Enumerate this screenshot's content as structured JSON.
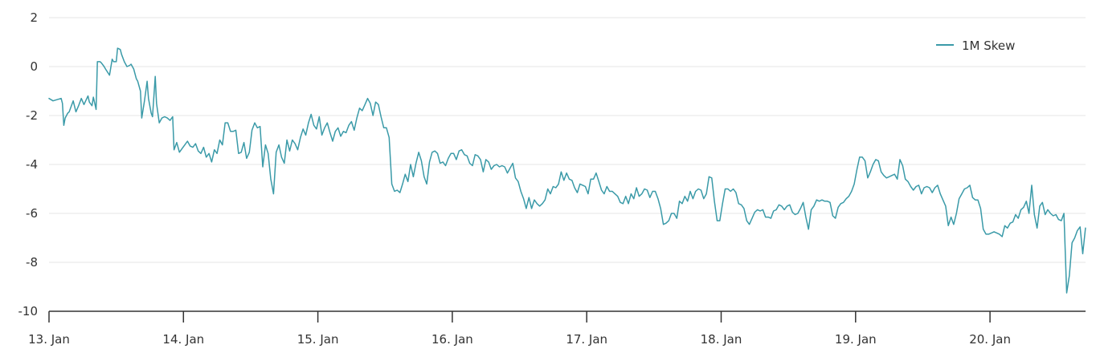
{
  "chart_data": {
    "type": "line",
    "title": "",
    "xlabel": "",
    "ylabel": "",
    "ylim": [
      -10,
      2
    ],
    "yticks": [
      2,
      0,
      -2,
      -4,
      -6,
      -8,
      -10
    ],
    "xticks": [
      "13. Jan",
      "14. Jan",
      "15. Jan",
      "16. Jan",
      "17. Jan",
      "18. Jan",
      "19. Jan",
      "20. Jan"
    ],
    "xrange_days": [
      0,
      7.71
    ],
    "grid": {
      "y": true,
      "x": false
    },
    "legend": {
      "position": "top-right",
      "entries": [
        "1M Skew"
      ]
    },
    "series": [
      {
        "name": "1M Skew",
        "color": "#3a9aa8",
        "x_days": [
          0.0,
          0.03,
          0.06,
          0.09,
          0.1,
          0.11,
          0.12,
          0.14,
          0.15,
          0.18,
          0.2,
          0.22,
          0.24,
          0.26,
          0.29,
          0.3,
          0.32,
          0.33,
          0.35,
          0.36,
          0.38,
          0.39,
          0.41,
          0.42,
          0.45,
          0.47,
          0.48,
          0.5,
          0.51,
          0.53,
          0.54,
          0.56,
          0.58,
          0.6,
          0.61,
          0.63,
          0.65,
          0.66,
          0.68,
          0.69,
          0.71,
          0.73,
          0.74,
          0.76,
          0.77,
          0.79,
          0.8,
          0.82,
          0.84,
          0.86,
          0.88,
          0.9,
          0.92,
          0.93,
          0.95,
          0.97,
          0.99,
          1.01,
          1.03,
          1.05,
          1.07,
          1.09,
          1.11,
          1.13,
          1.15,
          1.17,
          1.19,
          1.21,
          1.23,
          1.25,
          1.27,
          1.29,
          1.31,
          1.33,
          1.35,
          1.37,
          1.39,
          1.41,
          1.43,
          1.45,
          1.47,
          1.49,
          1.51,
          1.53,
          1.55,
          1.57,
          1.59,
          1.61,
          1.63,
          1.65,
          1.67,
          1.69,
          1.71,
          1.73,
          1.75,
          1.77,
          1.79,
          1.81,
          1.83,
          1.85,
          1.87,
          1.89,
          1.91,
          1.93,
          1.95,
          1.97,
          1.99,
          2.01,
          2.03,
          2.05,
          2.07,
          2.09,
          2.11,
          2.13,
          2.15,
          2.17,
          2.19,
          2.21,
          2.23,
          2.25,
          2.27,
          2.29,
          2.31,
          2.33,
          2.35,
          2.37,
          2.39,
          2.41,
          2.43,
          2.45,
          2.47,
          2.49,
          2.51,
          2.53,
          2.55,
          2.57,
          2.59,
          2.61,
          2.63,
          2.65,
          2.67,
          2.69,
          2.71,
          2.73,
          2.75,
          2.77,
          2.79,
          2.81,
          2.83,
          2.85,
          2.87,
          2.89,
          2.91,
          2.93,
          2.95,
          2.97,
          2.99,
          3.01,
          3.03,
          3.05,
          3.07,
          3.09,
          3.11,
          3.13,
          3.15,
          3.17,
          3.19,
          3.21,
          3.23,
          3.25,
          3.27,
          3.29,
          3.31,
          3.33,
          3.35,
          3.37,
          3.39,
          3.41,
          3.43,
          3.45,
          3.47,
          3.49,
          3.51,
          3.53,
          3.55,
          3.57,
          3.59,
          3.61,
          3.63,
          3.65,
          3.67,
          3.69,
          3.71,
          3.73,
          3.75,
          3.77,
          3.79,
          3.81,
          3.83,
          3.85,
          3.87,
          3.89,
          3.91,
          3.93,
          3.95,
          3.97,
          3.99,
          4.01,
          4.03,
          4.05,
          4.07,
          4.09,
          4.11,
          4.13,
          4.15,
          4.17,
          4.19,
          4.21,
          4.23,
          4.25,
          4.27,
          4.29,
          4.31,
          4.33,
          4.35,
          4.37,
          4.39,
          4.41,
          4.43,
          4.45,
          4.47,
          4.49,
          4.51,
          4.53,
          4.55,
          4.57,
          4.59,
          4.61,
          4.63,
          4.65,
          4.67,
          4.69,
          4.71,
          4.73,
          4.75,
          4.77,
          4.79,
          4.81,
          4.83,
          4.85,
          4.87,
          4.89,
          4.91,
          4.93,
          4.95,
          4.97,
          4.99,
          5.01,
          5.03,
          5.05,
          5.07,
          5.09,
          5.11,
          5.13,
          5.15,
          5.17,
          5.19,
          5.21,
          5.23,
          5.25,
          5.27,
          5.29,
          5.31,
          5.33,
          5.35,
          5.37,
          5.39,
          5.41,
          5.43,
          5.45,
          5.47,
          5.49,
          5.51,
          5.53,
          5.55,
          5.57,
          5.59,
          5.61,
          5.63,
          5.65,
          5.67,
          5.69,
          5.71,
          5.73,
          5.75,
          5.77,
          5.79,
          5.81,
          5.83,
          5.85,
          5.87,
          5.89,
          5.91,
          5.93,
          5.95,
          5.97,
          5.99,
          6.01,
          6.03,
          6.05,
          6.07,
          6.09,
          6.11,
          6.13,
          6.15,
          6.17,
          6.19,
          6.21,
          6.23,
          6.25,
          6.27,
          6.29,
          6.31,
          6.33,
          6.35,
          6.37,
          6.39,
          6.41,
          6.43,
          6.45,
          6.47,
          6.49,
          6.51,
          6.53,
          6.55,
          6.57,
          6.59,
          6.61,
          6.63,
          6.65,
          6.67,
          6.69,
          6.71,
          6.73,
          6.75,
          6.77,
          6.79,
          6.81,
          6.83,
          6.85,
          6.87,
          6.89,
          6.91,
          6.93,
          6.95,
          6.97,
          6.99,
          7.01,
          7.03,
          7.05,
          7.07,
          7.09,
          7.11,
          7.13,
          7.15,
          7.17,
          7.19,
          7.21,
          7.23,
          7.25,
          7.27,
          7.29,
          7.31,
          7.33,
          7.35,
          7.37,
          7.39,
          7.41,
          7.43,
          7.45,
          7.47,
          7.49,
          7.51,
          7.53,
          7.55,
          7.57,
          7.59,
          7.61,
          7.63,
          7.65,
          7.67,
          7.69,
          7.71
        ],
        "values": [
          -1.3,
          -1.4,
          -1.35,
          -1.3,
          -1.5,
          -2.4,
          -2.1,
          -1.9,
          -1.85,
          -1.4,
          -1.85,
          -1.6,
          -1.3,
          -1.55,
          -1.2,
          -1.45,
          -1.6,
          -1.25,
          -1.75,
          0.2,
          0.2,
          0.15,
          0.0,
          -0.1,
          -0.35,
          0.3,
          0.2,
          0.2,
          0.75,
          0.7,
          0.5,
          0.2,
          0.0,
          0.05,
          0.1,
          -0.1,
          -0.5,
          -0.6,
          -1.0,
          -2.1,
          -1.4,
          -0.6,
          -1.3,
          -1.9,
          -2.05,
          -0.4,
          -1.5,
          -2.3,
          -2.1,
          -2.05,
          -2.1,
          -2.2,
          -2.05,
          -3.4,
          -3.1,
          -3.5,
          -3.35,
          -3.2,
          -3.05,
          -3.25,
          -3.3,
          -3.15,
          -3.45,
          -3.55,
          -3.3,
          -3.7,
          -3.55,
          -3.9,
          -3.4,
          -3.55,
          -3.0,
          -3.2,
          -2.3,
          -2.3,
          -2.65,
          -2.65,
          -2.6,
          -3.55,
          -3.5,
          -3.1,
          -3.75,
          -3.5,
          -2.6,
          -2.3,
          -2.5,
          -2.45,
          -4.1,
          -3.2,
          -3.55,
          -4.6,
          -5.2,
          -3.5,
          -3.2,
          -3.7,
          -3.95,
          -3.0,
          -3.45,
          -3.0,
          -3.15,
          -3.4,
          -2.9,
          -2.55,
          -2.8,
          -2.3,
          -1.95,
          -2.4,
          -2.55,
          -2.05,
          -2.8,
          -2.5,
          -2.3,
          -2.7,
          -3.05,
          -2.65,
          -2.5,
          -2.85,
          -2.65,
          -2.7,
          -2.4,
          -2.25,
          -2.6,
          -2.1,
          -1.7,
          -1.8,
          -1.55,
          -1.3,
          -1.5,
          -2.0,
          -1.45,
          -1.55,
          -2.05,
          -2.5,
          -2.5,
          -2.9,
          -4.8,
          -5.1,
          -5.05,
          -5.15,
          -4.8,
          -4.4,
          -4.7,
          -4.0,
          -4.5,
          -3.95,
          -3.5,
          -3.85,
          -4.5,
          -4.8,
          -3.9,
          -3.5,
          -3.45,
          -3.55,
          -3.95,
          -3.9,
          -4.05,
          -3.75,
          -3.55,
          -3.55,
          -3.8,
          -3.45,
          -3.4,
          -3.6,
          -3.65,
          -3.95,
          -4.05,
          -3.6,
          -3.65,
          -3.8,
          -4.3,
          -3.8,
          -3.9,
          -4.2,
          -4.05,
          -4.0,
          -4.1,
          -4.05,
          -4.1,
          -4.35,
          -4.15,
          -3.95,
          -4.55,
          -4.7,
          -5.1,
          -5.4,
          -5.8,
          -5.35,
          -5.8,
          -5.45,
          -5.6,
          -5.7,
          -5.6,
          -5.45,
          -5.0,
          -5.2,
          -4.9,
          -4.95,
          -4.8,
          -4.3,
          -4.65,
          -4.35,
          -4.6,
          -4.65,
          -4.95,
          -5.15,
          -4.8,
          -4.85,
          -4.9,
          -5.2,
          -4.6,
          -4.6,
          -4.35,
          -4.7,
          -5.05,
          -5.2,
          -4.9,
          -5.1,
          -5.1,
          -5.2,
          -5.3,
          -5.55,
          -5.6,
          -5.3,
          -5.6,
          -5.2,
          -5.4,
          -4.95,
          -5.3,
          -5.2,
          -5.0,
          -5.05,
          -5.35,
          -5.1,
          -5.1,
          -5.4,
          -5.8,
          -6.45,
          -6.4,
          -6.3,
          -6.0,
          -6.0,
          -6.2,
          -5.5,
          -5.6,
          -5.3,
          -5.5,
          -5.1,
          -5.4,
          -5.1,
          -5.0,
          -5.05,
          -5.4,
          -5.2,
          -4.5,
          -4.55,
          -5.5,
          -6.3,
          -6.3,
          -5.6,
          -5.0,
          -5.0,
          -5.1,
          -5.0,
          -5.15,
          -5.6,
          -5.65,
          -5.8,
          -6.3,
          -6.45,
          -6.2,
          -5.95,
          -5.85,
          -5.9,
          -5.85,
          -6.15,
          -6.15,
          -6.2,
          -5.9,
          -5.85,
          -5.65,
          -5.7,
          -5.85,
          -5.7,
          -5.65,
          -5.95,
          -6.05,
          -6.0,
          -5.8,
          -5.55,
          -6.15,
          -6.65,
          -5.85,
          -5.7,
          -5.45,
          -5.5,
          -5.45,
          -5.5,
          -5.5,
          -5.55,
          -6.1,
          -6.2,
          -5.75,
          -5.6,
          -5.55,
          -5.4,
          -5.3,
          -5.1,
          -4.8,
          -4.2,
          -3.7,
          -3.7,
          -3.85,
          -4.55,
          -4.3,
          -4.0,
          -3.8,
          -3.85,
          -4.3,
          -4.45,
          -4.55,
          -4.5,
          -4.45,
          -4.4,
          -4.6,
          -3.8,
          -4.05,
          -4.6,
          -4.7,
          -4.9,
          -5.05,
          -4.9,
          -4.85,
          -5.2,
          -4.95,
          -4.9,
          -4.95,
          -5.15,
          -4.95,
          -4.85,
          -5.2,
          -5.45,
          -5.7,
          -6.5,
          -6.15,
          -6.45,
          -6.0,
          -5.4,
          -5.2,
          -5.0,
          -4.95,
          -4.85,
          -5.35,
          -5.45,
          -5.45,
          -5.8,
          -6.65,
          -6.85,
          -6.85,
          -6.8,
          -6.75,
          -6.8,
          -6.85,
          -6.95,
          -6.5,
          -6.6,
          -6.4,
          -6.35,
          -6.05,
          -6.2,
          -5.85,
          -5.75,
          -5.5,
          -6.0,
          -4.85,
          -6.05,
          -6.6,
          -5.7,
          -5.55,
          -6.05,
          -5.85,
          -6.0,
          -6.1,
          -6.05,
          -6.25,
          -6.3,
          -6.0,
          -9.25,
          -8.55,
          -7.2,
          -7.0,
          -6.7,
          -6.55,
          -7.65,
          -6.6
        ]
      }
    ]
  },
  "legend": {
    "label": "1M Skew",
    "icon": "line-swatch"
  },
  "axes": {
    "y_labels": [
      "2",
      "0",
      "-2",
      "-4",
      "-6",
      "-8",
      "-10"
    ],
    "x_labels": [
      "13. Jan",
      "14. Jan",
      "15. Jan",
      "16. Jan",
      "17. Jan",
      "18. Jan",
      "19. Jan",
      "20. Jan"
    ]
  },
  "colors": {
    "line": "#3a9aa8",
    "grid": "#e6e6e6",
    "axis": "#333333",
    "text": "#333333"
  }
}
